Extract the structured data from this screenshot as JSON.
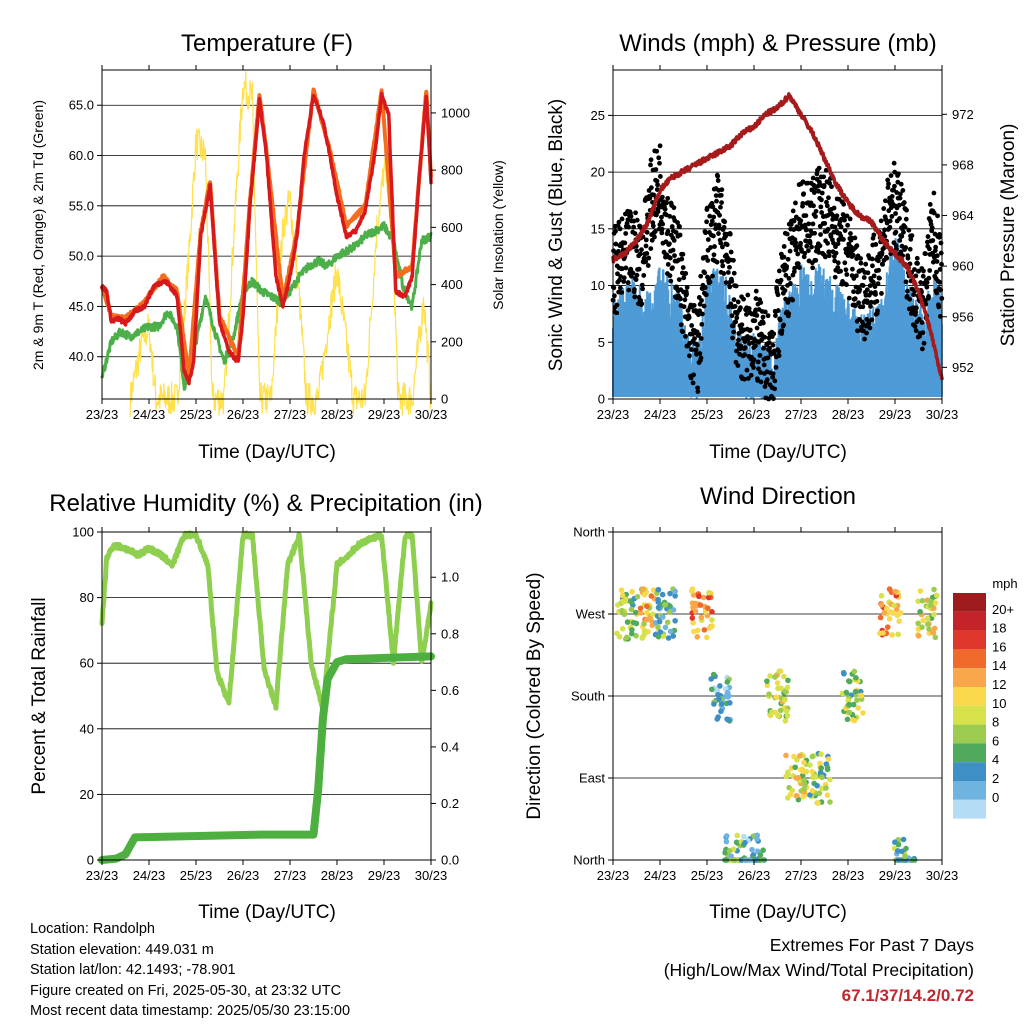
{
  "x_tick_labels": [
    "23/23",
    "24/23",
    "25/23",
    "26/23",
    "27/23",
    "28/23",
    "29/23",
    "30/23"
  ],
  "colors": {
    "temp2m": "#d7191c",
    "temp9m": "#f46d1e",
    "dewpoint": "#4daf4a",
    "solar": "#ffe14d",
    "wind": "#4f9bd6",
    "gust": "#000000",
    "pressure": "#a51a1a",
    "rh": "#8fcf4f",
    "precip": "#4caf3f"
  },
  "panels": {
    "temperature": {
      "title": "Temperature (F)",
      "xlabel": "Time (Day/UTC)",
      "ylabel_left": "2m & 9m T (Red, Orange) & 2m Td (Green)",
      "ylabel_right": "Solar Insolation (Yellow)",
      "left_ticks": [
        "40.0",
        "45.0",
        "50.0",
        "55.0",
        "60.0",
        "65.0"
      ],
      "right_ticks": [
        "0",
        "200",
        "400",
        "600",
        "800",
        "1000"
      ]
    },
    "winds": {
      "title": "Winds (mph) & Pressure (mb)",
      "xlabel": "Time (Day/UTC)",
      "ylabel_left": "Sonic Wind & Gust (Blue, Black)",
      "ylabel_right": "Station Pressure (Maroon)",
      "left_ticks": [
        "0",
        "5",
        "10",
        "15",
        "20",
        "25"
      ],
      "right_ticks": [
        "952",
        "956",
        "960",
        "964",
        "968",
        "972"
      ]
    },
    "humidity": {
      "title": "Relative Humidity (%) & Precipitation (in)",
      "xlabel": "Time (Day/UTC)",
      "ylabel_left": "Percent & Total Rainfall",
      "left_ticks": [
        "0",
        "20",
        "40",
        "60",
        "80",
        "100"
      ],
      "right_ticks": [
        "0.0",
        "0.2",
        "0.4",
        "0.6",
        "0.8",
        "1.0"
      ]
    },
    "direction": {
      "title": "Wind Direction",
      "xlabel": "Time (Day/UTC)",
      "ylabel_left": "Direction (Colored By Speed)",
      "left_ticks": [
        "North",
        "East",
        "South",
        "West",
        "North"
      ],
      "legend_title": "mph",
      "legend_labels": [
        "20+",
        "18",
        "16",
        "14",
        "12",
        "10",
        "8",
        "6",
        "4",
        "2",
        "0"
      ],
      "legend_colors": [
        "#9e1b1e",
        "#c4232a",
        "#e0362c",
        "#f06a2b",
        "#f8a84a",
        "#f9d84c",
        "#d7e24a",
        "#9ccc4f",
        "#4faa5c",
        "#3d8fc6",
        "#6fb3e0",
        "#b4dcf4"
      ]
    }
  },
  "info": {
    "location": "Location: Randolph",
    "elevation": "Station elevation: 449.031 m",
    "latlon": "Station lat/lon: 42.1493; -78.901",
    "created": "Figure created on Fri, 2025-05-30, at 23:32 UTC",
    "timestamp": "Most recent data timestamp: 2025/05/30 23:15:00"
  },
  "extremes": {
    "line1": "Extremes For Past 7 Days",
    "line2": "(High/Low/Max Wind/Total Precipitation)",
    "values": "67.1/37/14.2/0.72"
  },
  "chart_data": [
    {
      "type": "line",
      "title": "Temperature (F)",
      "xlabel": "Time (Day/UTC)",
      "ylabel": "2m & 9m T (Red, Orange) & 2m Td (Green)",
      "y2label": "Solar Insolation (Yellow)",
      "x_unit": "days since 23/23",
      "xlim": [
        0,
        7
      ],
      "ylim": [
        35.8,
        68.5
      ],
      "y2lim": [
        0,
        1150
      ],
      "series": [
        {
          "name": "2m T (Red)",
          "x": [
            0,
            0.1,
            0.2,
            0.35,
            0.5,
            0.7,
            0.9,
            1.1,
            1.3,
            1.4,
            1.6,
            1.75,
            1.85,
            1.95,
            2.1,
            2.3,
            2.5,
            2.7,
            2.9,
            3.0,
            3.15,
            3.35,
            3.5,
            3.7,
            3.85,
            4.0,
            4.15,
            4.3,
            4.5,
            4.7,
            4.85,
            5.0,
            5.2,
            5.4,
            5.6,
            5.8,
            5.95,
            6.1,
            6.25,
            6.45,
            6.6,
            6.75,
            6.9,
            7.0
          ],
          "y": [
            47.0,
            46.5,
            43.5,
            43.8,
            43.3,
            44.5,
            45.0,
            47.0,
            47.5,
            47.3,
            46.0,
            38.5,
            37.5,
            39.5,
            52.0,
            57.0,
            43.5,
            40.5,
            39.5,
            44.0,
            55.0,
            65.5,
            60.0,
            48.0,
            45.0,
            48.0,
            52.0,
            60.0,
            66.0,
            63.5,
            60.0,
            56.0,
            52.0,
            52.5,
            54.5,
            60.0,
            66.0,
            64.0,
            46.5,
            46.0,
            48.0,
            58.0,
            66.0,
            57.5
          ]
        },
        {
          "name": "9m T (Orange)",
          "x": [
            0,
            0.2,
            0.5,
            0.9,
            1.3,
            1.6,
            1.85,
            2.1,
            2.3,
            2.5,
            2.9,
            3.15,
            3.35,
            3.5,
            3.85,
            4.15,
            4.5,
            4.85,
            5.2,
            5.6,
            5.95,
            6.25,
            6.6,
            6.9,
            7.0
          ],
          "y": [
            47.0,
            44.0,
            43.8,
            45.5,
            48.0,
            46.5,
            38.0,
            52.5,
            57.5,
            44.0,
            40.0,
            55.5,
            66.0,
            60.5,
            45.5,
            52.5,
            66.5,
            60.5,
            53.0,
            55.0,
            66.5,
            48.0,
            49.0,
            66.5,
            58.0
          ]
        },
        {
          "name": "2m Td (Green)",
          "x": [
            0,
            0.2,
            0.4,
            0.6,
            0.8,
            1.0,
            1.2,
            1.4,
            1.6,
            1.75,
            1.85,
            2.0,
            2.2,
            2.4,
            2.6,
            2.8,
            3.0,
            3.2,
            3.4,
            3.6,
            3.8,
            4.0,
            4.2,
            4.4,
            4.6,
            4.8,
            5.0,
            5.2,
            5.4,
            5.6,
            5.8,
            6.0,
            6.2,
            6.4,
            6.6,
            6.8,
            7.0
          ],
          "y": [
            38.0,
            41.5,
            42.5,
            42.0,
            42.5,
            43.0,
            43.0,
            44.5,
            43.0,
            37.0,
            38.5,
            41.5,
            46.0,
            42.5,
            39.5,
            42.0,
            46.5,
            47.5,
            46.5,
            46.0,
            45.5,
            46.5,
            48.0,
            49.0,
            49.5,
            49.0,
            50.0,
            50.5,
            51.0,
            52.0,
            52.5,
            53.0,
            51.5,
            47.0,
            45.0,
            51.5,
            52.0
          ]
        },
        {
          "name": "Solar Insolation (Yellow)",
          "axis": "y2",
          "x": [
            0.6,
            0.85,
            1.0,
            1.15,
            1.6,
            1.85,
            2.0,
            2.2,
            2.35,
            2.6,
            2.85,
            3.0,
            3.2,
            3.35,
            3.6,
            3.85,
            4.0,
            4.2,
            4.35,
            4.6,
            4.85,
            5.0,
            5.2,
            5.35,
            5.6,
            5.85,
            6.0,
            6.15,
            6.3,
            6.6,
            6.85,
            7.0
          ],
          "y": [
            0,
            200,
            250,
            0,
            0,
            500,
            900,
            850,
            0,
            0,
            700,
            1100,
            1050,
            0,
            0,
            600,
            700,
            350,
            0,
            0,
            300,
            450,
            200,
            0,
            0,
            600,
            800,
            750,
            0,
            0,
            350,
            0
          ]
        }
      ]
    },
    {
      "type": "line",
      "title": "Winds (mph) & Pressure (mb)",
      "xlabel": "Time (Day/UTC)",
      "ylabel": "Sonic Wind & Gust (Blue, Black)",
      "y2label": "Station Pressure (Maroon)",
      "x_unit": "days since 23/23",
      "xlim": [
        0,
        7
      ],
      "ylim": [
        0,
        29
      ],
      "y2lim": [
        949.5,
        975.5
      ],
      "series": [
        {
          "name": "Sonic Wind (Blue)",
          "x": [
            0,
            0.2,
            0.4,
            0.6,
            0.8,
            1.0,
            1.2,
            1.4,
            1.6,
            1.8,
            2.0,
            2.2,
            2.4,
            2.6,
            2.8,
            3.0,
            3.2,
            3.4,
            3.6,
            3.8,
            4.0,
            4.2,
            4.4,
            4.6,
            4.8,
            5.0,
            5.2,
            5.4,
            5.6,
            5.8,
            6.0,
            6.2,
            6.4,
            6.6,
            6.8,
            7.0
          ],
          "y": [
            6,
            7,
            8,
            7,
            6.5,
            9,
            8,
            7,
            3,
            2,
            8,
            9,
            8,
            4,
            3,
            3,
            2,
            1.5,
            6,
            7,
            9,
            8,
            9,
            8,
            7,
            6,
            5,
            4.5,
            6,
            8,
            12,
            9,
            6,
            5,
            9,
            6
          ]
        },
        {
          "name": "Gust (Black)",
          "x": [
            0,
            0.2,
            0.4,
            0.6,
            0.8,
            1.0,
            1.2,
            1.4,
            1.6,
            1.8,
            2.0,
            2.2,
            2.4,
            2.6,
            2.8,
            3.0,
            3.2,
            3.4,
            3.6,
            3.8,
            4.0,
            4.2,
            4.4,
            4.6,
            4.8,
            5.0,
            5.2,
            5.4,
            5.6,
            5.8,
            6.0,
            6.2,
            6.4,
            6.6,
            6.8,
            7.0
          ],
          "y": [
            11,
            12,
            13,
            12,
            17,
            19,
            14,
            12,
            6,
            4,
            13,
            16,
            14,
            7,
            5,
            6,
            4,
            3,
            10,
            12,
            16,
            15,
            17,
            16,
            14,
            13,
            10,
            9,
            11,
            15,
            17,
            14,
            10,
            8,
            15,
            10
          ]
        },
        {
          "name": "Station Pressure (Maroon)",
          "axis": "y2",
          "x": [
            0,
            0.25,
            0.5,
            0.75,
            1.0,
            1.25,
            1.5,
            1.75,
            2.0,
            2.25,
            2.5,
            2.75,
            3.0,
            3.25,
            3.5,
            3.75,
            4.0,
            4.25,
            4.5,
            4.75,
            5.0,
            5.25,
            5.5,
            5.75,
            6.0,
            6.25,
            6.5,
            6.75,
            7.0
          ],
          "y": [
            960.5,
            961,
            962,
            963.5,
            966,
            967,
            967.5,
            968,
            968.5,
            969,
            969.5,
            970.5,
            971,
            972,
            972.5,
            973.5,
            972,
            970.5,
            968.5,
            966.5,
            965,
            964,
            963.5,
            962,
            961,
            960,
            958,
            955,
            951
          ]
        }
      ]
    },
    {
      "type": "line",
      "title": "Relative Humidity (%) & Precipitation (in)",
      "xlabel": "Time (Day/UTC)",
      "ylabel": "Percent & Total Rainfall",
      "x_unit": "days since 23/23",
      "xlim": [
        0,
        7
      ],
      "ylim": [
        0,
        100
      ],
      "y2lim": [
        0,
        1.16
      ],
      "series": [
        {
          "name": "Relative Humidity",
          "x": [
            0,
            0.1,
            0.25,
            0.5,
            0.75,
            1.0,
            1.25,
            1.5,
            1.75,
            2.0,
            2.25,
            2.45,
            2.7,
            3.0,
            3.2,
            3.45,
            3.7,
            3.95,
            4.2,
            4.45,
            4.7,
            5.0,
            5.25,
            5.45,
            5.7,
            5.95,
            6.2,
            6.45,
            6.6,
            6.8,
            7.0
          ],
          "y": [
            72,
            92,
            96,
            95,
            93,
            95,
            93,
            90,
            99,
            99,
            90,
            57,
            48,
            99,
            99,
            58,
            47,
            90,
            99,
            60,
            46,
            90,
            93,
            96,
            98,
            99,
            60,
            99,
            99,
            60,
            78
          ]
        },
        {
          "name": "Total Precipitation",
          "axis": "y2",
          "x": [
            0,
            0.3,
            0.5,
            0.7,
            3.4,
            4.5,
            4.6,
            4.7,
            4.8,
            5.0,
            5.2,
            7.0
          ],
          "y": [
            0,
            0.005,
            0.02,
            0.08,
            0.09,
            0.09,
            0.25,
            0.5,
            0.64,
            0.7,
            0.71,
            0.72
          ]
        }
      ]
    },
    {
      "type": "scatter",
      "title": "Wind Direction",
      "xlabel": "Time (Day/UTC)",
      "ylabel": "Direction (Colored By Speed)",
      "x_unit": "days since 23/23",
      "xlim": [
        0,
        7
      ],
      "y_categories": [
        "North",
        "East",
        "South",
        "West",
        "North"
      ],
      "points": [
        {
          "x": 0.3,
          "dir": "West",
          "speed": 8
        },
        {
          "x": 0.8,
          "dir": "West",
          "speed": 12
        },
        {
          "x": 1.1,
          "dir": "West",
          "speed": 6
        },
        {
          "x": 1.9,
          "dir": "West",
          "speed": 14
        },
        {
          "x": 2.3,
          "dir": "South",
          "speed": 4
        },
        {
          "x": 2.6,
          "dir": "North",
          "speed": 6
        },
        {
          "x": 3.0,
          "dir": "North",
          "speed": 4
        },
        {
          "x": 3.5,
          "dir": "South",
          "speed": 10
        },
        {
          "x": 3.9,
          "dir": "East",
          "speed": 10
        },
        {
          "x": 4.4,
          "dir": "East",
          "speed": 8
        },
        {
          "x": 5.1,
          "dir": "South",
          "speed": 8
        },
        {
          "x": 5.9,
          "dir": "West",
          "speed": 14
        },
        {
          "x": 6.2,
          "dir": "North",
          "speed": 6
        },
        {
          "x": 6.7,
          "dir": "West",
          "speed": 10
        }
      ]
    }
  ]
}
